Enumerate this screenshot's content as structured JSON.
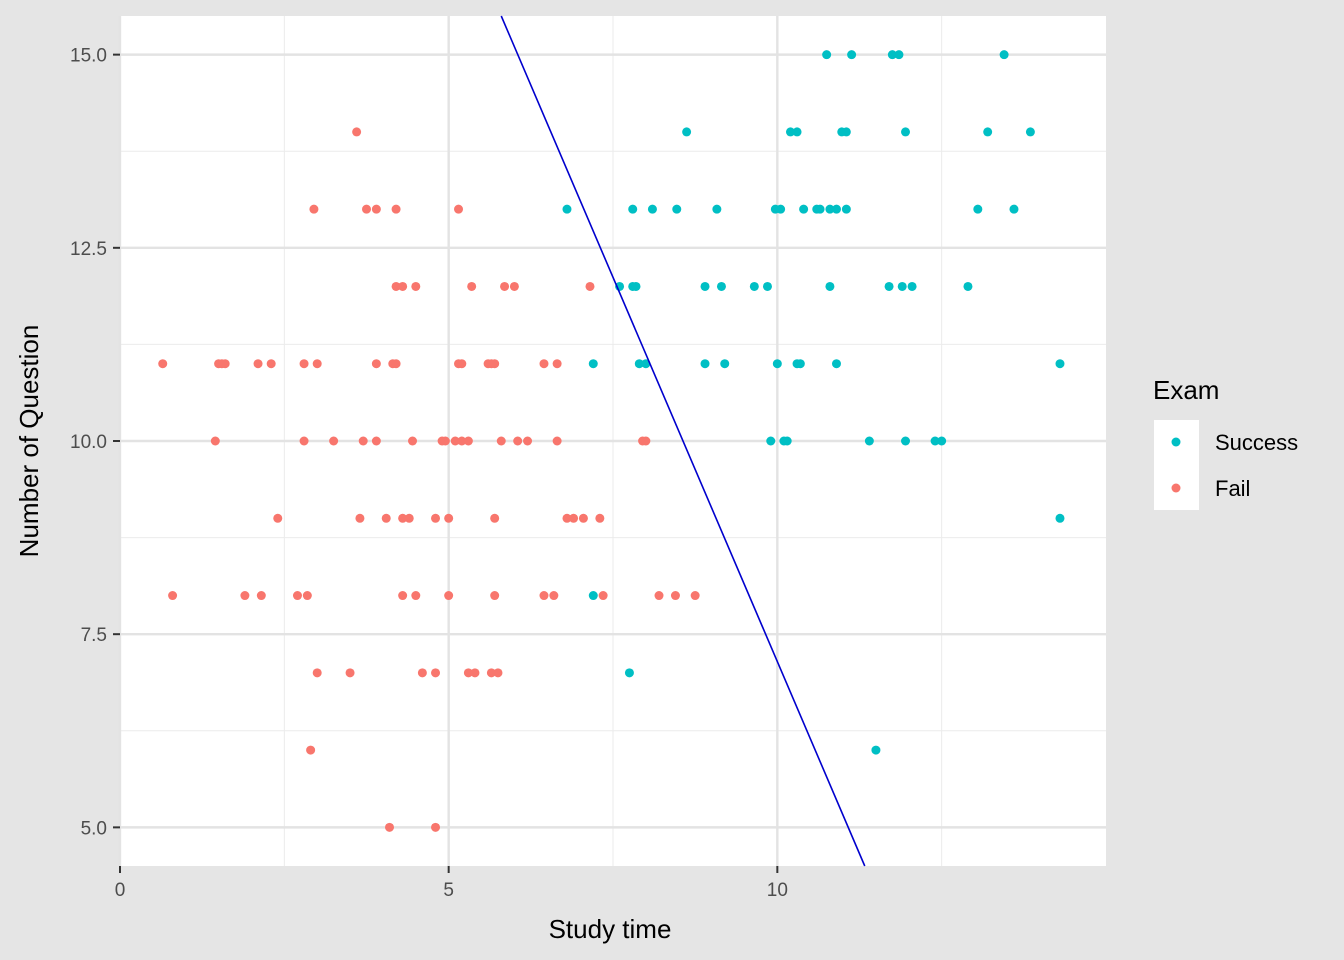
{
  "chart_data": {
    "type": "scatter",
    "xlabel": "Study time",
    "ylabel": "Number of Question",
    "xlim": [
      0,
      15
    ],
    "ylim": [
      4.5,
      15.5
    ],
    "x_ticks": [
      {
        "value": 0,
        "label": "0"
      },
      {
        "value": 5,
        "label": "5"
      },
      {
        "value": 10,
        "label": "10"
      }
    ],
    "y_ticks": [
      {
        "value": 5,
        "label": "5.0"
      },
      {
        "value": 7.5,
        "label": "7.5"
      },
      {
        "value": 10,
        "label": "10.0"
      },
      {
        "value": 12.5,
        "label": "12.5"
      },
      {
        "value": 15,
        "label": "15.0"
      }
    ],
    "grid": true,
    "legend": {
      "title": "Exam",
      "position": "right"
    },
    "series": [
      {
        "name": "Success",
        "color": "#00bfc4",
        "points": [
          [
            10.75,
            15
          ],
          [
            11.13,
            15
          ],
          [
            11.75,
            15
          ],
          [
            11.85,
            15
          ],
          [
            13.45,
            15
          ],
          [
            8.62,
            14
          ],
          [
            10.2,
            14
          ],
          [
            10.3,
            14
          ],
          [
            10.98,
            14
          ],
          [
            11.05,
            14
          ],
          [
            11.95,
            14
          ],
          [
            13.2,
            14
          ],
          [
            13.85,
            14
          ],
          [
            6.8,
            13
          ],
          [
            7.8,
            13
          ],
          [
            8.1,
            13
          ],
          [
            8.47,
            13
          ],
          [
            9.08,
            13
          ],
          [
            9.97,
            13
          ],
          [
            10.05,
            13
          ],
          [
            10.4,
            13
          ],
          [
            10.6,
            13
          ],
          [
            10.65,
            13
          ],
          [
            10.8,
            13
          ],
          [
            10.9,
            13
          ],
          [
            11.05,
            13
          ],
          [
            13.05,
            13
          ],
          [
            13.6,
            13
          ],
          [
            7.6,
            12
          ],
          [
            7.8,
            12
          ],
          [
            7.85,
            12
          ],
          [
            8.9,
            12
          ],
          [
            9.15,
            12
          ],
          [
            9.65,
            12
          ],
          [
            9.85,
            12
          ],
          [
            10.8,
            12
          ],
          [
            11.7,
            12
          ],
          [
            11.9,
            12
          ],
          [
            12.05,
            12
          ],
          [
            12.9,
            12
          ],
          [
            7.2,
            11
          ],
          [
            7.9,
            11
          ],
          [
            8.0,
            11
          ],
          [
            8.9,
            11
          ],
          [
            9.2,
            11
          ],
          [
            10.0,
            11
          ],
          [
            10.3,
            11
          ],
          [
            10.35,
            11
          ],
          [
            10.9,
            11
          ],
          [
            14.3,
            11
          ],
          [
            9.9,
            10
          ],
          [
            10.1,
            10
          ],
          [
            10.15,
            10
          ],
          [
            11.4,
            10
          ],
          [
            11.95,
            10
          ],
          [
            12.4,
            10
          ],
          [
            12.5,
            10
          ],
          [
            14.3,
            9
          ],
          [
            7.2,
            8
          ],
          [
            7.75,
            7
          ],
          [
            11.5,
            6
          ]
        ]
      },
      {
        "name": "Fail",
        "color": "#f8766d",
        "points": [
          [
            3.6,
            14
          ],
          [
            2.95,
            13
          ],
          [
            3.75,
            13
          ],
          [
            3.9,
            13
          ],
          [
            4.2,
            13
          ],
          [
            5.15,
            13
          ],
          [
            4.2,
            12
          ],
          [
            4.3,
            12
          ],
          [
            4.5,
            12
          ],
          [
            5.35,
            12
          ],
          [
            5.85,
            12
          ],
          [
            6.0,
            12
          ],
          [
            7.15,
            12
          ],
          [
            0.65,
            11
          ],
          [
            1.5,
            11
          ],
          [
            1.55,
            11
          ],
          [
            1.6,
            11
          ],
          [
            2.1,
            11
          ],
          [
            2.3,
            11
          ],
          [
            2.8,
            11
          ],
          [
            3.0,
            11
          ],
          [
            3.9,
            11
          ],
          [
            4.15,
            11
          ],
          [
            4.2,
            11
          ],
          [
            5.15,
            11
          ],
          [
            5.2,
            11
          ],
          [
            5.6,
            11
          ],
          [
            5.65,
            11
          ],
          [
            5.7,
            11
          ],
          [
            6.45,
            11
          ],
          [
            6.65,
            11
          ],
          [
            1.45,
            10
          ],
          [
            2.8,
            10
          ],
          [
            3.25,
            10
          ],
          [
            3.7,
            10
          ],
          [
            3.9,
            10
          ],
          [
            4.45,
            10
          ],
          [
            4.9,
            10
          ],
          [
            4.95,
            10
          ],
          [
            5.1,
            10
          ],
          [
            5.2,
            10
          ],
          [
            5.3,
            10
          ],
          [
            5.8,
            10
          ],
          [
            6.05,
            10
          ],
          [
            6.2,
            10
          ],
          [
            6.65,
            10
          ],
          [
            7.95,
            10
          ],
          [
            8.0,
            10
          ],
          [
            2.4,
            9
          ],
          [
            3.65,
            9
          ],
          [
            4.05,
            9
          ],
          [
            4.3,
            9
          ],
          [
            4.4,
            9
          ],
          [
            4.8,
            9
          ],
          [
            5.0,
            9
          ],
          [
            5.7,
            9
          ],
          [
            6.8,
            9
          ],
          [
            6.9,
            9
          ],
          [
            7.05,
            9
          ],
          [
            7.3,
            9
          ],
          [
            0.8,
            8
          ],
          [
            1.9,
            8
          ],
          [
            2.15,
            8
          ],
          [
            2.7,
            8
          ],
          [
            2.85,
            8
          ],
          [
            4.3,
            8
          ],
          [
            4.5,
            8
          ],
          [
            5.0,
            8
          ],
          [
            5.7,
            8
          ],
          [
            6.45,
            8
          ],
          [
            6.6,
            8
          ],
          [
            7.35,
            8
          ],
          [
            8.2,
            8
          ],
          [
            8.45,
            8
          ],
          [
            8.75,
            8
          ],
          [
            3.0,
            7
          ],
          [
            3.5,
            7
          ],
          [
            4.6,
            7
          ],
          [
            4.8,
            7
          ],
          [
            5.3,
            7
          ],
          [
            5.4,
            7
          ],
          [
            5.65,
            7
          ],
          [
            5.75,
            7
          ],
          [
            2.9,
            6
          ],
          [
            4.1,
            5
          ],
          [
            4.8,
            5
          ]
        ]
      }
    ],
    "line": {
      "color": "#0000cd",
      "from": [
        5.8,
        15.5
      ],
      "to": [
        11.33,
        4.5
      ]
    }
  }
}
